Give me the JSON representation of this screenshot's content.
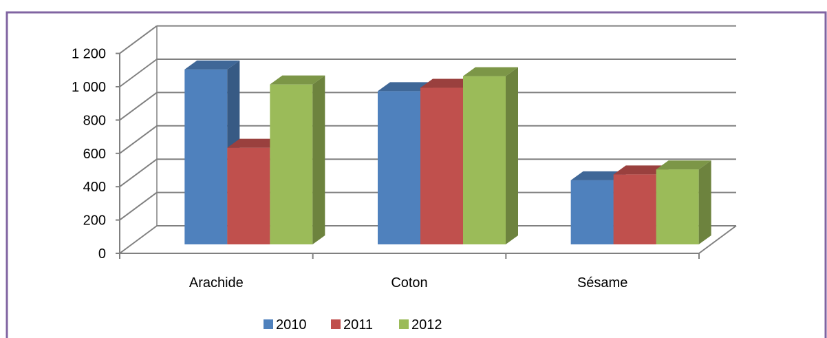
{
  "chart_data": {
    "type": "bar",
    "title": "",
    "xlabel": "",
    "ylabel": "",
    "ylim": [
      0,
      1200
    ],
    "yticks": [
      "0",
      "200",
      "400",
      "600",
      "800",
      "1 000",
      "1 200"
    ],
    "ytick_values": [
      0,
      200,
      400,
      600,
      800,
      1000,
      1200
    ],
    "categories": [
      "Arachide",
      "Coton",
      "Sésame"
    ],
    "series": [
      {
        "name": "2010",
        "values": [
          1050,
          920,
          385
        ]
      },
      {
        "name": "2011",
        "values": [
          580,
          940,
          420
        ]
      },
      {
        "name": "2012",
        "values": [
          960,
          1010,
          450
        ]
      }
    ],
    "grid": true,
    "legend_position": "bottom",
    "colors": {
      "2010": "#4F81BD",
      "2011": "#C0504D",
      "2012": "#9BBB59",
      "frame": "#8064A2",
      "grid": "#808080"
    }
  }
}
